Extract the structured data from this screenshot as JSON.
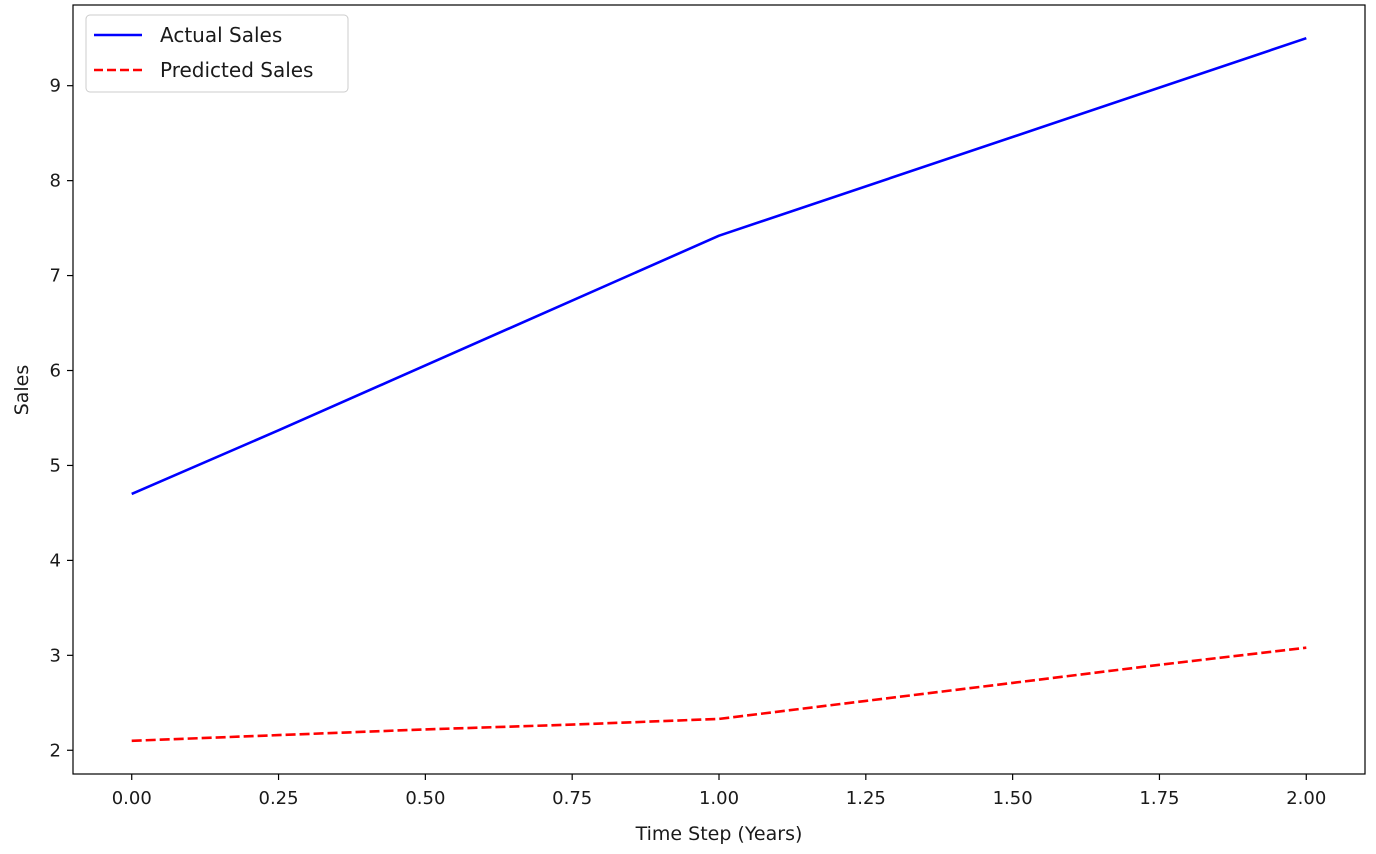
{
  "chart_data": {
    "type": "line",
    "title": "",
    "xlabel": "Time Step (Years)",
    "ylabel": "Sales",
    "xlim": [
      -0.1,
      2.1
    ],
    "ylim": [
      1.75,
      9.85
    ],
    "xticks": [
      0.0,
      0.25,
      0.5,
      0.75,
      1.0,
      1.25,
      1.5,
      1.75,
      2.0
    ],
    "xtick_labels": [
      "0.00",
      "0.25",
      "0.50",
      "0.75",
      "1.00",
      "1.25",
      "1.50",
      "1.75",
      "2.00"
    ],
    "yticks": [
      2,
      3,
      4,
      5,
      6,
      7,
      8,
      9
    ],
    "ytick_labels": [
      "2",
      "3",
      "4",
      "5",
      "6",
      "7",
      "8",
      "9"
    ],
    "grid": false,
    "legend_position": "top-left",
    "series": [
      {
        "name": "Actual Sales",
        "color": "#0000ff",
        "style": "solid",
        "x": [
          0.0,
          0.25,
          1.0,
          2.0
        ],
        "y": [
          4.7,
          5.37,
          7.42,
          9.5
        ]
      },
      {
        "name": "Predicted Sales",
        "color": "#ff0000",
        "style": "dashed",
        "x": [
          0.0,
          0.25,
          0.5,
          0.75,
          1.0,
          1.25,
          1.5,
          1.75,
          2.0
        ],
        "y": [
          2.1,
          2.16,
          2.22,
          2.27,
          2.33,
          2.52,
          2.71,
          2.9,
          3.08
        ]
      }
    ]
  }
}
